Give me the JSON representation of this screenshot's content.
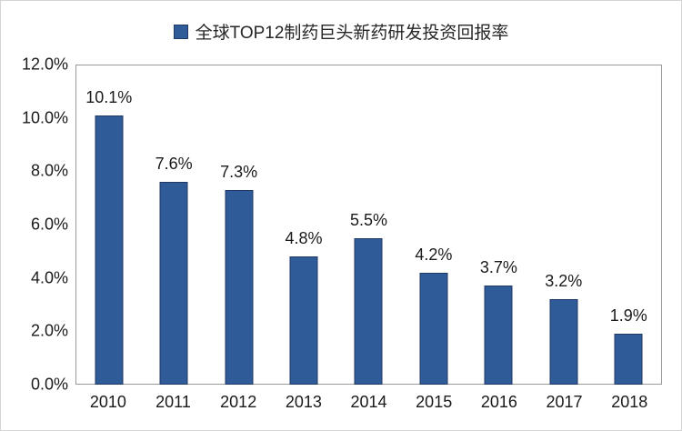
{
  "chart_data": {
    "type": "bar",
    "title": "全球TOP12制药巨头新药研发投资回报率",
    "legend": {
      "position": "top",
      "entries": [
        "全球TOP12制药巨头新药研发投资回报率"
      ]
    },
    "categories": [
      "2010",
      "2011",
      "2012",
      "2013",
      "2014",
      "2015",
      "2016",
      "2017",
      "2018"
    ],
    "values": [
      10.1,
      7.6,
      7.3,
      4.8,
      5.5,
      4.2,
      3.7,
      3.2,
      1.9
    ],
    "value_labels": [
      "10.1%",
      "7.6%",
      "7.3%",
      "4.8%",
      "5.5%",
      "4.2%",
      "3.7%",
      "3.2%",
      "1.9%"
    ],
    "xlabel": "",
    "ylabel": "",
    "ylim": [
      0,
      12
    ],
    "y_tick_values": [
      12,
      10,
      8,
      6,
      4,
      2,
      0
    ],
    "y_tick_labels": [
      "12.0%",
      "10.0%",
      "8.0%",
      "6.0%",
      "4.0%",
      "2.0%",
      "0.0%"
    ],
    "grid": false,
    "colors": {
      "bar_fill": "#2F5B98",
      "bar_border": "#1F3864",
      "plot_border": "#9A9A9A",
      "chart_border": "#D5D5D5"
    }
  }
}
